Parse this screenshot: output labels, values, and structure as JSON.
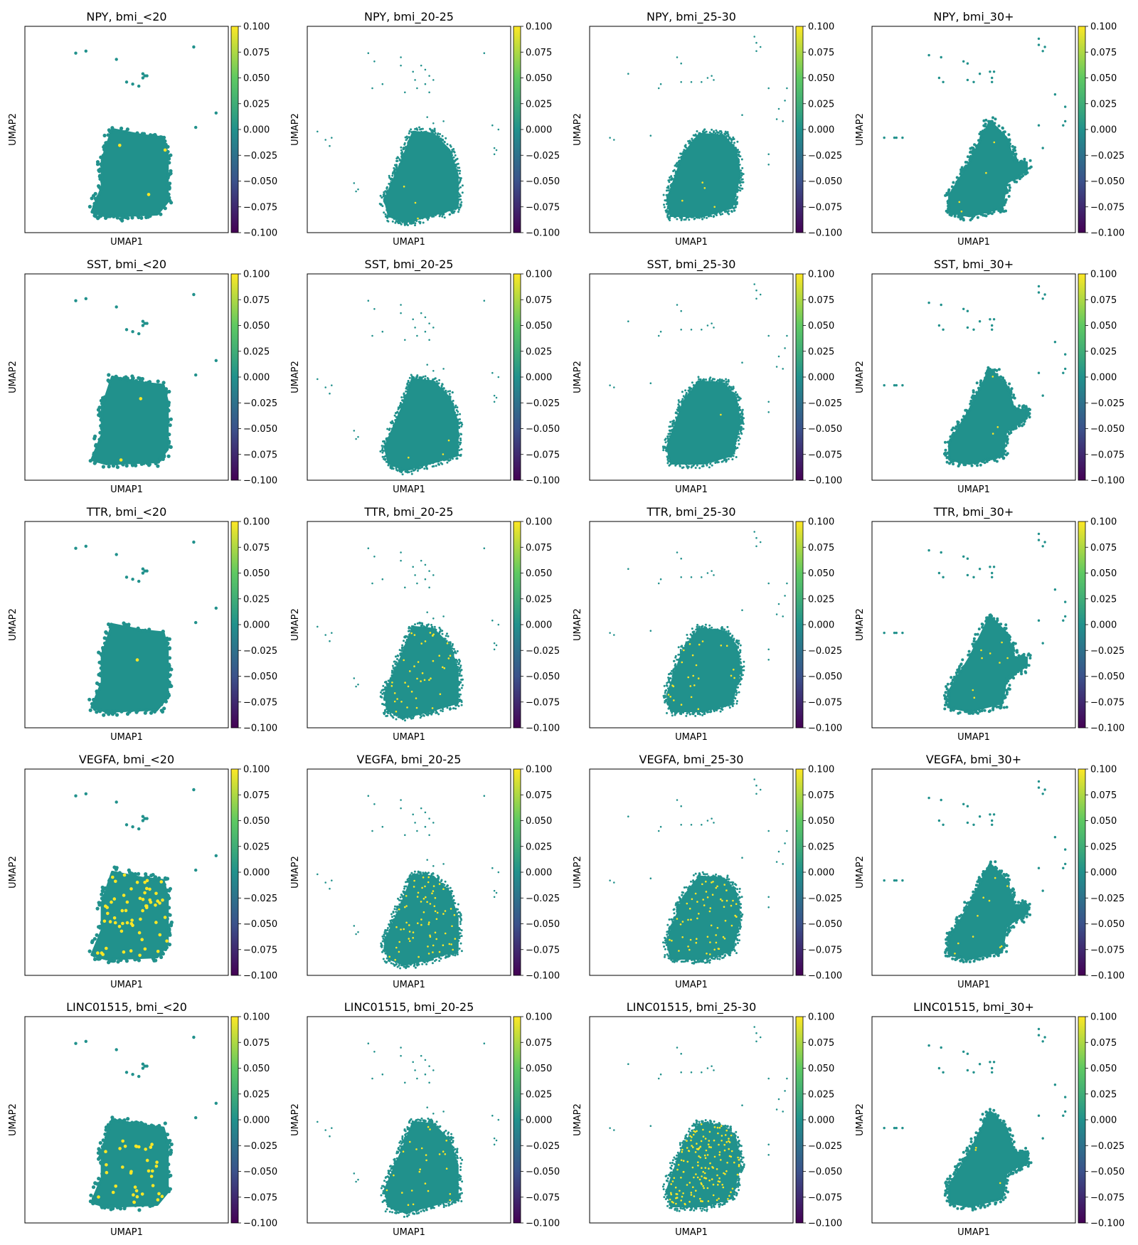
{
  "figure": {
    "genes": [
      "NPY",
      "SST",
      "TTR",
      "VEGFA",
      "LINC01515"
    ],
    "groups": [
      "bmi_<20",
      "bmi_20-25",
      "bmi_25-30",
      "bmi_30+"
    ],
    "xlabel": "UMAP1",
    "ylabel": "UMAP2"
  },
  "colorbar": {
    "colormap": "viridis",
    "vmin": -0.1,
    "vmax": 0.1,
    "ticks": [
      "0.100",
      "0.075",
      "0.050",
      "0.025",
      "0.000",
      "−0.025",
      "−0.050",
      "−0.075",
      "−0.100"
    ]
  },
  "colors": {
    "cell": "#21918c",
    "expressed": "#fde725",
    "viridis": [
      "#440154",
      "#3b528b",
      "#21918c",
      "#5ec962",
      "#fde725"
    ]
  },
  "chart_data": {
    "type": "scatter",
    "description_type": "umap feature plot grid",
    "rows": [
      "NPY",
      "SST",
      "TTR",
      "VEGFA",
      "LINC01515"
    ],
    "columns": [
      "bmi_<20",
      "bmi_20-25",
      "bmi_25-30",
      "bmi_30+"
    ],
    "titles": [
      [
        "NPY, bmi_<20",
        "NPY, bmi_20-25",
        "NPY, bmi_25-30",
        "NPY, bmi_30+"
      ],
      [
        "SST, bmi_<20",
        "SST, bmi_20-25",
        "SST, bmi_25-30",
        "SST, bmi_30+"
      ],
      [
        "TTR, bmi_<20",
        "TTR, bmi_20-25",
        "TTR, bmi_25-30",
        "TTR, bmi_30+"
      ],
      [
        "VEGFA, bmi_<20",
        "VEGFA, bmi_20-25",
        "VEGFA, bmi_25-30",
        "VEGFA, bmi_30+"
      ],
      [
        "LINC01515, bmi_<20",
        "LINC01515, bmi_20-25",
        "LINC01515, bmi_25-30",
        "LINC01515, bmi_30+"
      ]
    ],
    "xlabel": "UMAP1",
    "ylabel": "UMAP2",
    "color_range": [
      -0.1,
      0.1
    ],
    "colorbar_ticks": [
      0.1,
      0.075,
      0.05,
      0.025,
      0.0,
      -0.025,
      -0.05,
      -0.075,
      -0.1
    ],
    "expressed_cell_counts": [
      [
        3,
        3,
        4,
        4
      ],
      [
        2,
        3,
        1,
        3
      ],
      [
        1,
        40,
        25,
        8
      ],
      [
        60,
        70,
        60,
        10
      ],
      [
        35,
        25,
        160,
        3
      ]
    ],
    "grid": false
  }
}
